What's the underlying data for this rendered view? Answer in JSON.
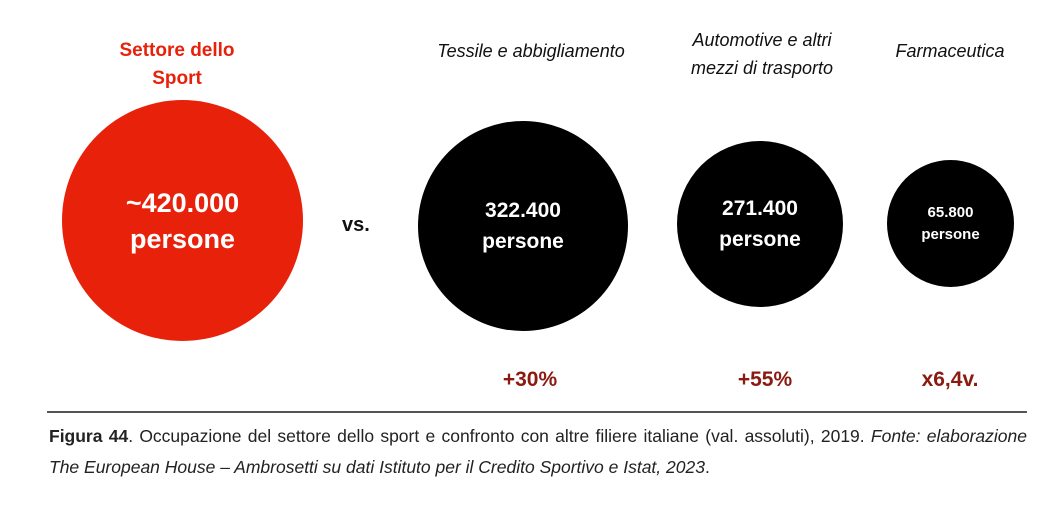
{
  "chart_data": {
    "type": "bubble",
    "comparison_word": "vs.",
    "items": [
      {
        "category": "Settore dello Sport",
        "value_label": "~420.000",
        "unit_label": "persone",
        "value": 420000,
        "color": "#e8210b",
        "change_label": ""
      },
      {
        "category": "Tessile e abbigliamento",
        "value_label": "322.400",
        "unit_label": "persone",
        "value": 322400,
        "color": "#000000",
        "change_label": "+30%"
      },
      {
        "category": "Automotive e altri mezzi di trasporto",
        "value_label": "271.400",
        "unit_label": "persone",
        "value": 271400,
        "color": "#000000",
        "change_label": "+55%"
      },
      {
        "category": "Farmaceutica",
        "value_label": "65.800",
        "unit_label": "persone",
        "value": 65800,
        "color": "#000000",
        "change_label": "x6,4v."
      }
    ]
  },
  "caption": {
    "figure_label": "Figura 44",
    "text": ". Occupazione del settore dello sport e confronto con altre filiere italiane (val. assoluti), 2019. ",
    "source_italic": "Fonte: elaborazione The European House – Ambrosetti su dati Istituto per il Credito Sportivo e Istat, 2023",
    "end": "."
  },
  "colors": {
    "sport_accent": "#e8210b",
    "change_text": "#8b1a10"
  }
}
